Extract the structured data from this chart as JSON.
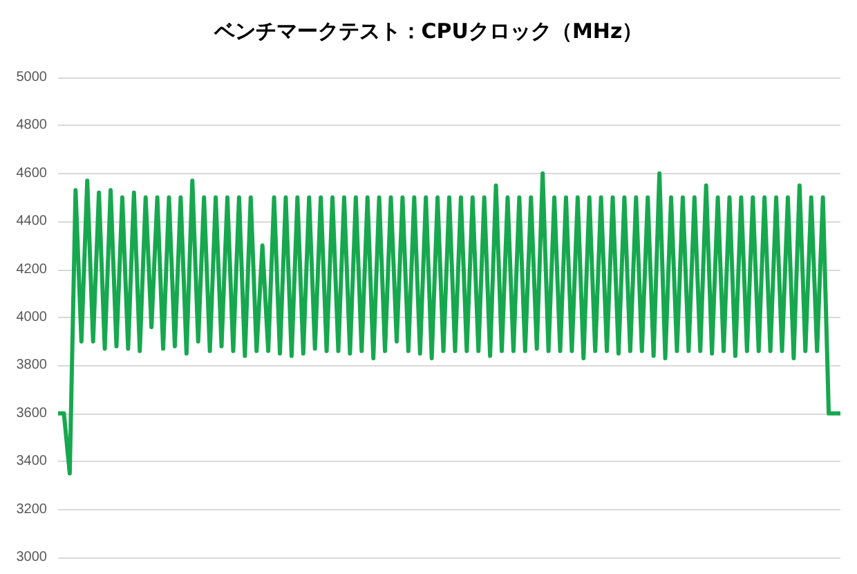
{
  "chart_data": {
    "type": "line",
    "title": "ベンチマークテスト：CPUクロック（MHz）",
    "categories": [
      null,
      null,
      null,
      null,
      null,
      null,
      null,
      null,
      null,
      null,
      null,
      null,
      null,
      null,
      null,
      null,
      null,
      null,
      null,
      null,
      null,
      null,
      null,
      null,
      null,
      null,
      null,
      null,
      null,
      null,
      null,
      null,
      null,
      null,
      null,
      null,
      null,
      null,
      null,
      null,
      null,
      null,
      null,
      null,
      null,
      null,
      null,
      null,
      null,
      null,
      null,
      null,
      null,
      null,
      null,
      null,
      null,
      null,
      null,
      null,
      null,
      null,
      null,
      null,
      null,
      null,
      null,
      null,
      null,
      null,
      null,
      null,
      null,
      null,
      null,
      null,
      null,
      null,
      null,
      null,
      null,
      null,
      null,
      null,
      null,
      null,
      null,
      null,
      null,
      null,
      null,
      null,
      null,
      null,
      null,
      null,
      null,
      null,
      null,
      null,
      null,
      null,
      null,
      null,
      null,
      null,
      null,
      null,
      null,
      null,
      null,
      null,
      null,
      null,
      null,
      null,
      null,
      null,
      null,
      null,
      null,
      null,
      null,
      null,
      null,
      null,
      null,
      null,
      null,
      null,
      null,
      null,
      null,
      null,
      null
    ],
    "series": [
      {
        "color": "#17a84f",
        "values": [
          3600,
          3600,
          3350,
          4530,
          3900,
          4570,
          3900,
          4520,
          3870,
          4530,
          3880,
          4500,
          3870,
          4520,
          3860,
          4500,
          3960,
          4500,
          3870,
          4500,
          3880,
          4500,
          3850,
          4570,
          3900,
          4500,
          3860,
          4500,
          3880,
          4500,
          3860,
          4500,
          3840,
          4500,
          3860,
          4300,
          3860,
          4500,
          3850,
          4500,
          3840,
          4500,
          3850,
          4500,
          3870,
          4500,
          3860,
          4500,
          3860,
          4500,
          3850,
          4500,
          3860,
          4500,
          3830,
          4500,
          3860,
          4500,
          3900,
          4500,
          3860,
          4500,
          3850,
          4500,
          3830,
          4500,
          3860,
          4500,
          3860,
          4500,
          3860,
          4500,
          3860,
          4500,
          3840,
          4550,
          3860,
          4500,
          3860,
          4500,
          3860,
          4500,
          3870,
          4600,
          3860,
          4500,
          3860,
          4500,
          3860,
          4500,
          3830,
          4500,
          3860,
          4500,
          3860,
          4500,
          3850,
          4500,
          3860,
          4500,
          3860,
          4500,
          3840,
          4600,
          3830,
          4500,
          3860,
          4500,
          3860,
          4500,
          3860,
          4550,
          3850,
          4500,
          3860,
          4500,
          3840,
          4500,
          3860,
          4500,
          3860,
          4500,
          3860,
          4500,
          3860,
          4500,
          3830,
          4550,
          3860,
          4500,
          3860,
          4500,
          3600,
          3600,
          3600
        ]
      }
    ],
    "ylim": [
      3000,
      5000
    ],
    "yticks": [
      3000,
      3200,
      3400,
      3600,
      3800,
      4000,
      4200,
      4400,
      4600,
      4800,
      5000
    ],
    "grid": "y",
    "tick_labels": "y",
    "line_style": "solid"
  }
}
